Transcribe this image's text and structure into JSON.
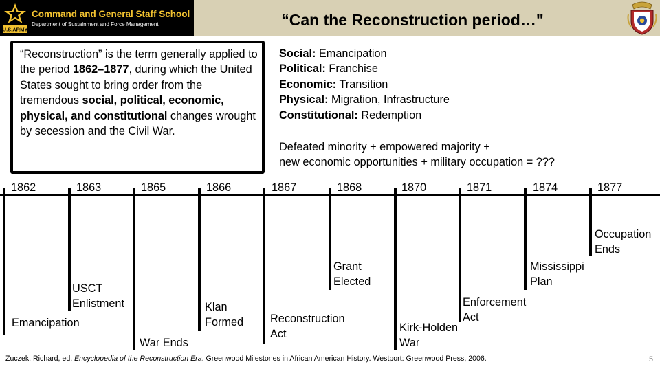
{
  "header": {
    "school": "Command and General Staff School",
    "department": "Department of Sustainment and Force Management",
    "title": "“Can the Reconstruction period…\"",
    "logo_text": "U.S.ARMY"
  },
  "definition": {
    "p1": "“Reconstruction” is the term generally applied to the period ",
    "b1": "1862–1877",
    "p2": ", during which the United States sought to bring order from the tremendous ",
    "b2": "social, political, economic, physical, and constitutional",
    "p3": " changes wrought by secession and the Civil War."
  },
  "themes": [
    {
      "label": "Social:",
      "value": "Emancipation"
    },
    {
      "label": "Political:",
      "value": "Franchise"
    },
    {
      "label": "Economic:",
      "value": "Transition"
    },
    {
      "label": "Physical:",
      "value": "Migration, Infrastructure"
    },
    {
      "label": "Constitutional:",
      "value": "Redemption"
    }
  ],
  "formula": {
    "line1": "Defeated minority + empowered majority +",
    "line2": "new economic opportunities + military occupation = ???"
  },
  "timeline": [
    {
      "year": "1862",
      "event": [
        "Emancipation"
      ]
    },
    {
      "year": "1863",
      "event": [
        "USCT",
        "Enlistment"
      ]
    },
    {
      "year": "1865",
      "event": [
        "War Ends"
      ]
    },
    {
      "year": "1866",
      "event": [
        "Klan",
        "Formed"
      ]
    },
    {
      "year": "1867",
      "event": [
        "Reconstruction",
        "Act"
      ]
    },
    {
      "year": "1868",
      "event": [
        "Grant",
        "Elected"
      ]
    },
    {
      "year": "1870",
      "event": [
        "Kirk-Holden",
        "War"
      ]
    },
    {
      "year": "1871",
      "event": [
        "Enforcement",
        "Act"
      ]
    },
    {
      "year": "1874",
      "event": [
        "Mississippi",
        "Plan"
      ]
    },
    {
      "year": "1877",
      "event": [
        "Occupation",
        "Ends"
      ]
    }
  ],
  "citation": {
    "before": "Zuczek, Richard, ed. ",
    "title": "Encyclopedia of the Reconstruction Era",
    "after": ". Greenwood Milestones in African American History. Westport: Greenwood Press, 2006."
  },
  "page_number": "5"
}
